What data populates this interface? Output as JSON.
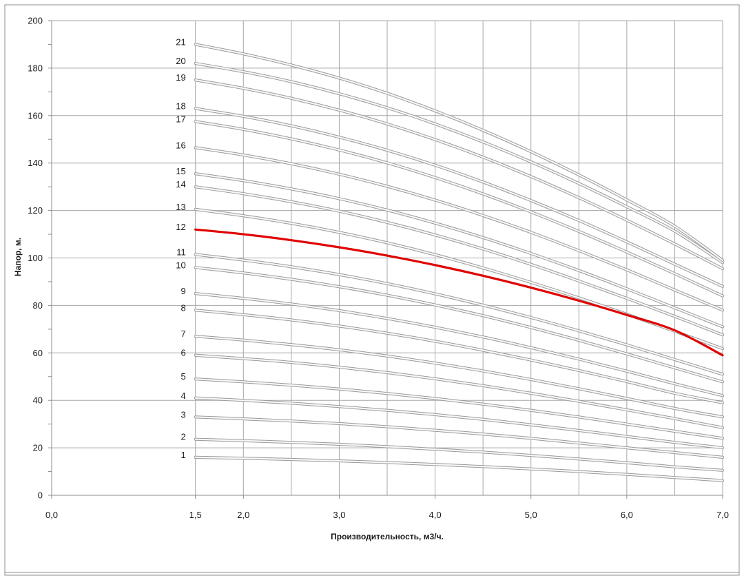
{
  "chart_data": {
    "type": "line",
    "title": "",
    "xlabel": "Производительность, м3/ч.",
    "ylabel": "Напор, м.",
    "xlim": [
      0,
      7.0
    ],
    "ylim": [
      0,
      200
    ],
    "x_ticks": [
      "0,0",
      "1,5",
      "2,0",
      "3,0",
      "4,0",
      "5,0",
      "6,0",
      "7,0"
    ],
    "x_tick_values": [
      0,
      1.5,
      2.0,
      3.0,
      4.0,
      5.0,
      6.0,
      7.0
    ],
    "y_ticks": [
      "0",
      "20",
      "40",
      "60",
      "80",
      "100",
      "120",
      "140",
      "160",
      "180",
      "200"
    ],
    "y_tick_values": [
      0,
      20,
      40,
      60,
      80,
      100,
      120,
      140,
      160,
      180,
      200
    ],
    "grid": true,
    "x": [
      1.5,
      2.0,
      2.5,
      3.0,
      3.5,
      4.0,
      4.5,
      5.0,
      5.5,
      6.0,
      6.5,
      7.0
    ],
    "highlight_color": "#e00000",
    "curve_color": "#d6d6d6",
    "series": [
      {
        "label": "1",
        "values": [
          16,
          15.6,
          15.1,
          14.5,
          13.8,
          13.0,
          12.1,
          11.1,
          10.0,
          8.8,
          7.5,
          6.2
        ],
        "highlight": false
      },
      {
        "label": "2",
        "values": [
          23.6,
          23,
          22.3,
          21.5,
          20.5,
          19.4,
          18.2,
          16.8,
          15.3,
          13.7,
          12,
          10.5
        ],
        "highlight": false
      },
      {
        "label": "3",
        "values": [
          33,
          32.2,
          31.3,
          30.2,
          28.9,
          27.4,
          25.8,
          24,
          22,
          20,
          18,
          16
        ],
        "highlight": false
      },
      {
        "label": "4",
        "values": [
          41,
          40,
          38.8,
          37.4,
          35.8,
          34,
          32,
          29.7,
          27.3,
          24.8,
          22.3,
          20
        ],
        "highlight": false
      },
      {
        "label": "5",
        "values": [
          49,
          47.8,
          46.4,
          44.8,
          42.9,
          40.8,
          38.4,
          35.8,
          33,
          30,
          27,
          24
        ],
        "highlight": false
      },
      {
        "label": "6",
        "values": [
          59,
          57.6,
          56,
          54,
          51.7,
          49.1,
          46.2,
          43,
          39.6,
          36,
          32.3,
          28.5
        ],
        "highlight": false
      },
      {
        "label": "7",
        "values": [
          67,
          65.4,
          63.5,
          61.3,
          58.7,
          55.7,
          52.4,
          48.8,
          44.9,
          40.8,
          36.6,
          33
        ],
        "highlight": false
      },
      {
        "label": "8",
        "values": [
          78,
          76.1,
          73.9,
          71.3,
          68.3,
          64.9,
          61.1,
          57,
          52.6,
          47.9,
          43,
          39
        ],
        "highlight": false
      },
      {
        "label": "9",
        "values": [
          85,
          83,
          80.6,
          77.8,
          74.5,
          70.8,
          66.7,
          62.2,
          57.4,
          52.3,
          47,
          42
        ],
        "highlight": false
      },
      {
        "label": "10",
        "values": [
          96,
          93.7,
          91,
          87.9,
          84.3,
          80.2,
          75.7,
          70.7,
          65.3,
          59.6,
          53.7,
          47.8
        ],
        "highlight": false
      },
      {
        "label": "11",
        "values": [
          101.5,
          99.1,
          96.3,
          93,
          89.2,
          84.9,
          80.1,
          74.9,
          69.3,
          63.4,
          57.2,
          51
        ],
        "highlight": false
      },
      {
        "label": "12",
        "values": [
          112,
          110,
          107.5,
          104.5,
          101,
          97,
          92.5,
          87.5,
          82,
          76,
          69.5,
          59
        ],
        "highlight": true
      },
      {
        "label": "13",
        "values": [
          120.5,
          117.8,
          114.6,
          110.8,
          106.4,
          101.4,
          95.8,
          89.7,
          83.2,
          76.3,
          69.1,
          61.8
        ],
        "highlight": false
      },
      {
        "label": "14",
        "values": [
          130,
          127.1,
          123.7,
          119.7,
          115,
          109.7,
          103.8,
          97.3,
          90.3,
          83,
          75.4,
          67.6
        ],
        "highlight": false
      },
      {
        "label": "15",
        "values": [
          135.5,
          132.6,
          129.1,
          125,
          120.2,
          114.7,
          108.6,
          101.9,
          94.7,
          87,
          79,
          71
        ],
        "highlight": false
      },
      {
        "label": "16",
        "values": [
          146.5,
          143.4,
          139.7,
          135.3,
          130.2,
          124.4,
          117.9,
          110.8,
          103.1,
          95,
          86.5,
          78
        ],
        "highlight": false
      },
      {
        "label": "17",
        "values": [
          157.5,
          154.2,
          150.2,
          145.5,
          140.1,
          133.9,
          127,
          119.4,
          111.2,
          102.5,
          93.4,
          84
        ],
        "highlight": false
      },
      {
        "label": "18",
        "values": [
          163,
          159.7,
          155.7,
          150.9,
          145.4,
          139.1,
          132,
          124.2,
          115.8,
          106.8,
          97.4,
          88
        ],
        "highlight": false
      },
      {
        "label": "19",
        "values": [
          175,
          171.5,
          167.3,
          162.3,
          156.5,
          149.9,
          142.5,
          134.3,
          125.4,
          115.9,
          105.9,
          95.5
        ],
        "highlight": false
      },
      {
        "label": "20",
        "values": [
          182,
          178.5,
          174.3,
          169.2,
          163.3,
          156.5,
          148.9,
          140.5,
          131.4,
          121.6,
          111.3,
          98
        ],
        "highlight": false
      },
      {
        "label": "21",
        "values": [
          190,
          186,
          181.3,
          175.8,
          169.4,
          162,
          153.8,
          144.8,
          135,
          124.5,
          113.4,
          99
        ],
        "highlight": false
      }
    ]
  }
}
